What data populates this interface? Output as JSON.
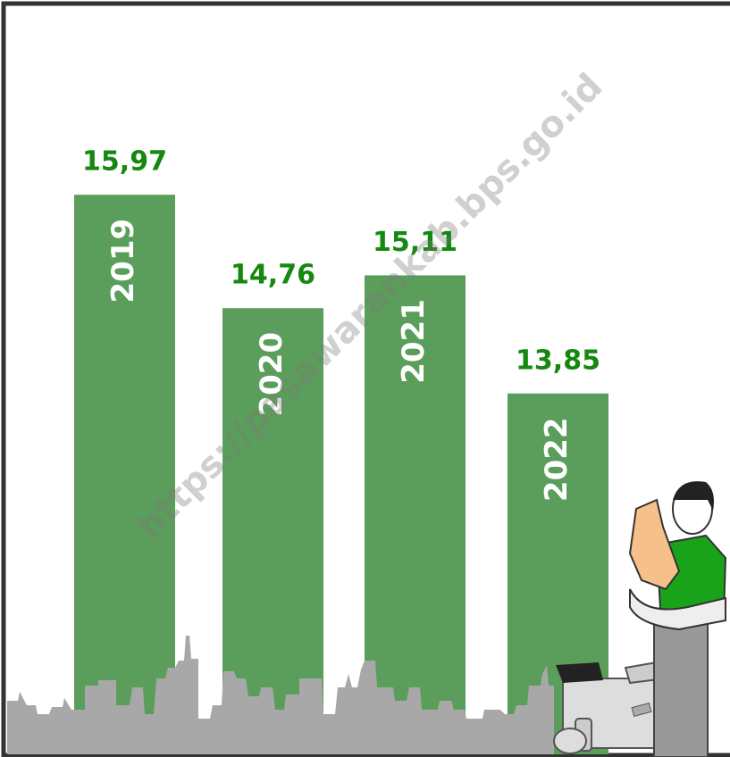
{
  "chart_data": {
    "type": "bar",
    "categories": [
      "2019",
      "2020",
      "2021",
      "2022"
    ],
    "values": [
      15.97,
      14.76,
      15.11,
      13.85
    ],
    "value_labels": [
      "15,97",
      "14,76",
      "15,11",
      "13,85"
    ],
    "color": "#5b9e5b",
    "ylim": [
      10,
      18
    ],
    "annotation": "https://pasawarankab.bps.go.id"
  }
}
